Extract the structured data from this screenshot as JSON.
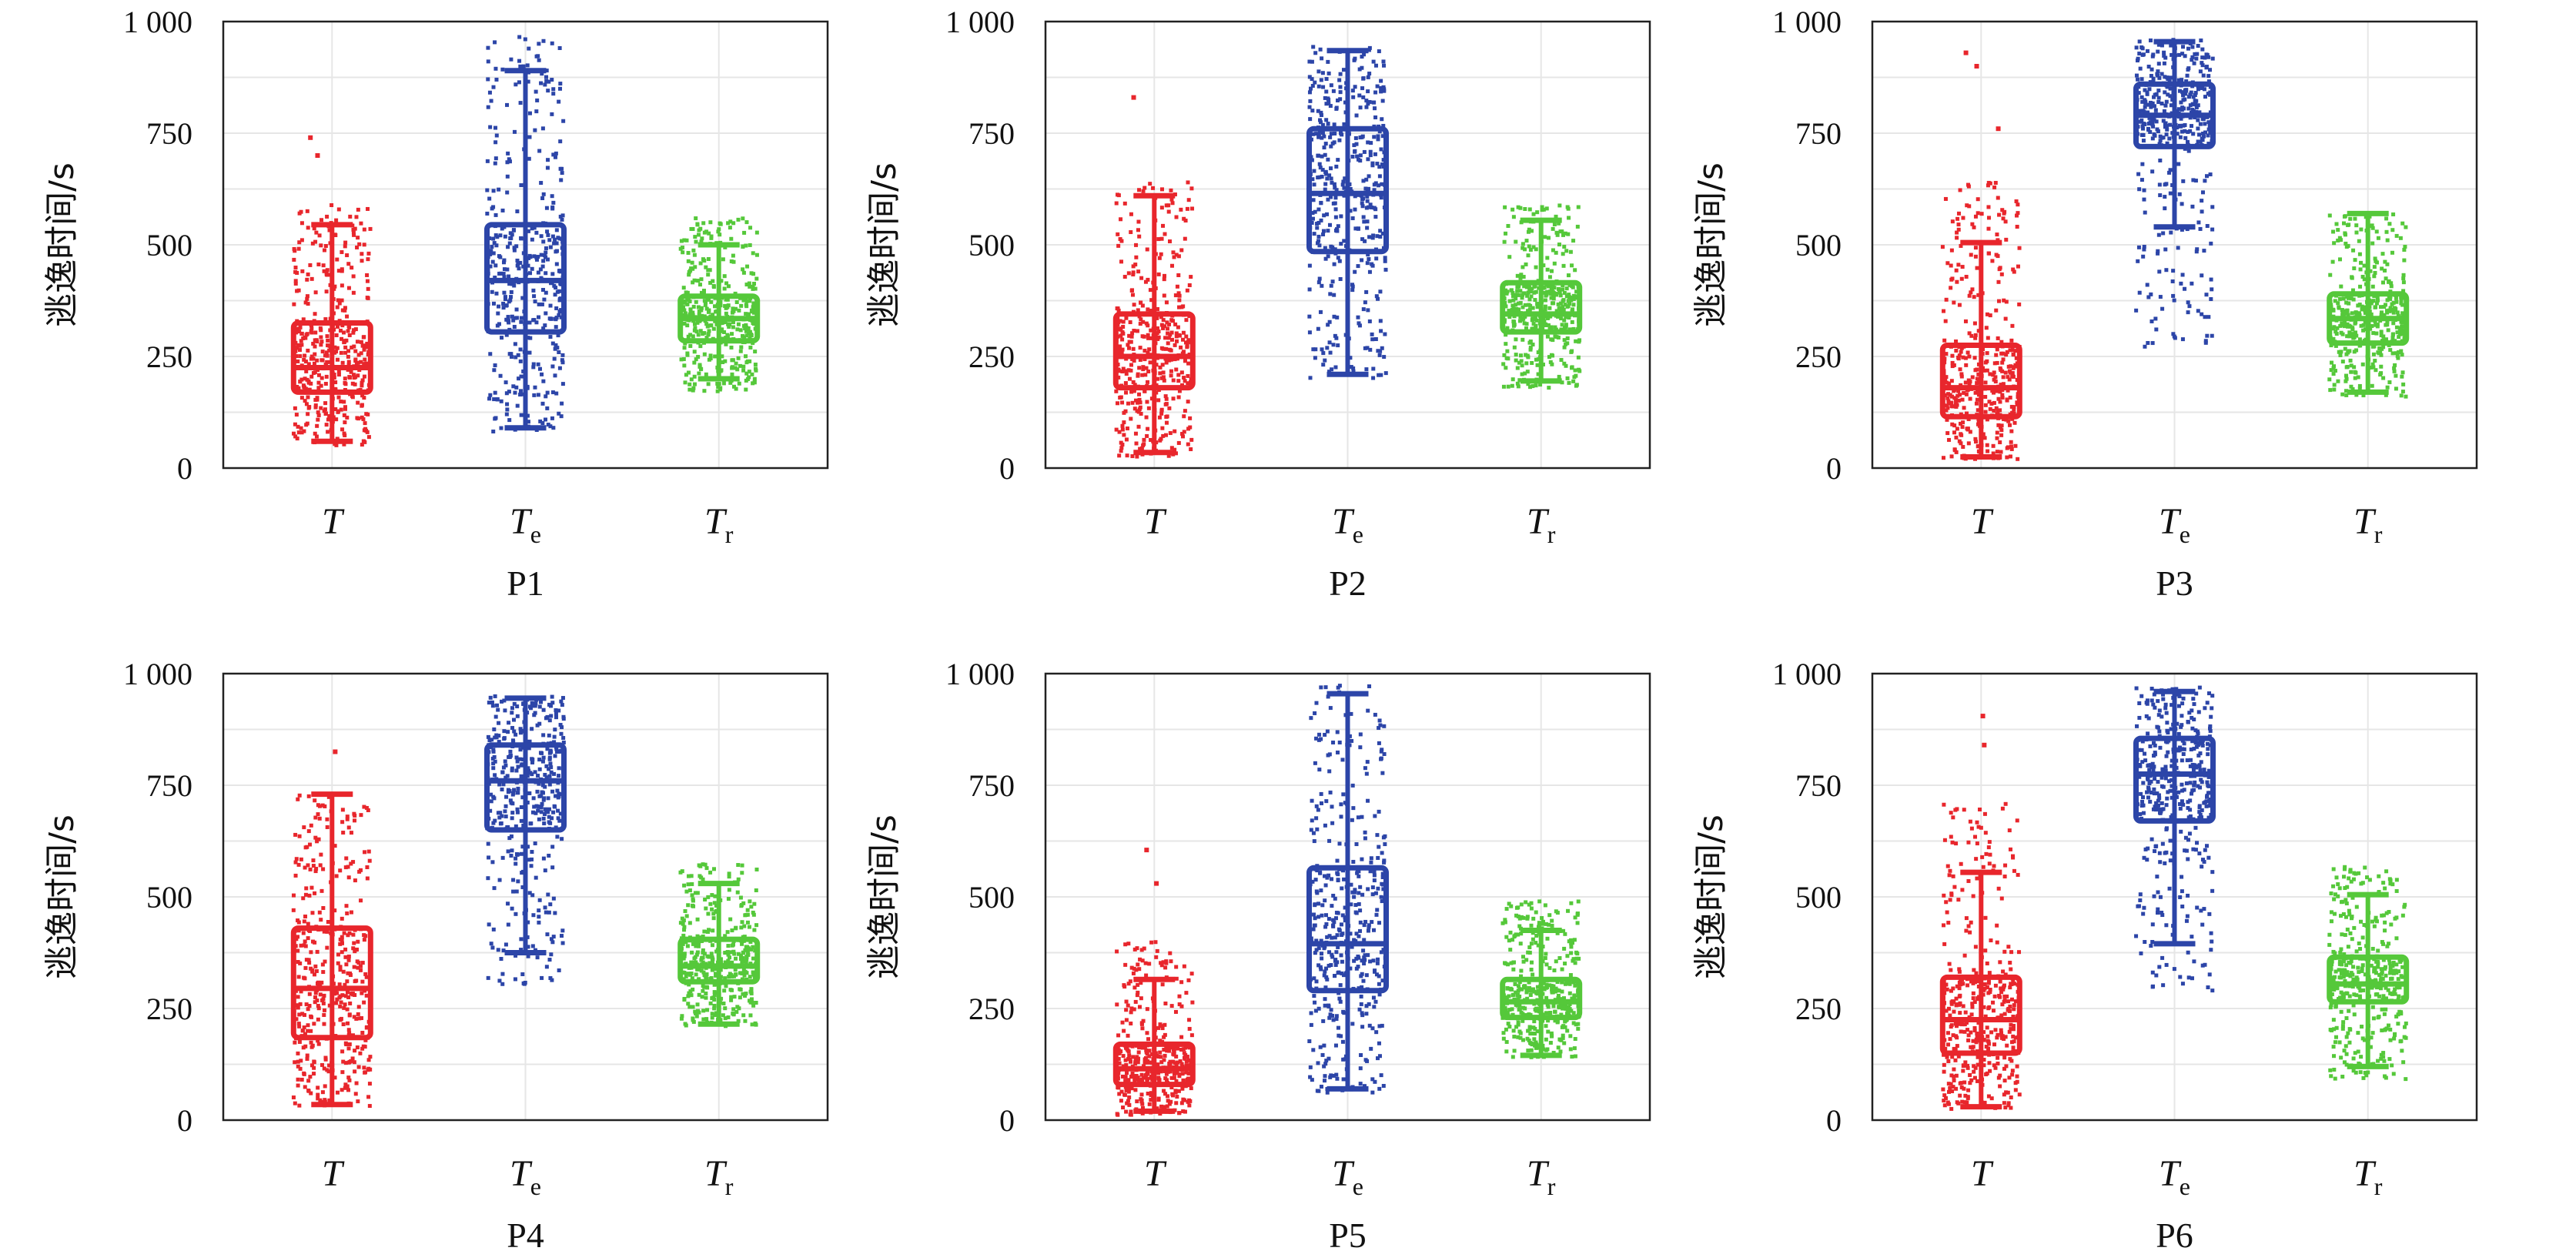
{
  "colors": {
    "T": "#e8262c",
    "Te": "#2c45a8",
    "Tr": "#55c83a",
    "grid": "#e6e6e6",
    "axis": "#222222"
  },
  "chart_data": [
    {
      "type": "box",
      "title": "P1",
      "ylabel": "逃逸时间/s",
      "ylim": [
        0,
        1000
      ],
      "yticks": [
        0,
        250,
        500,
        750,
        1000
      ],
      "ytick_labels": [
        "0",
        "250",
        "500",
        "750",
        "1 000"
      ],
      "categories": [
        {
          "base": "T",
          "sub": "",
          "color": "T",
          "whisker_low": 60,
          "q1": 170,
          "median": 225,
          "q3": 325,
          "whisker_high": 545,
          "pts_low": 50,
          "pts_high": 590,
          "outliers": [
            700,
            740
          ]
        },
        {
          "base": "T",
          "sub": "e",
          "color": "Te",
          "whisker_low": 90,
          "q1": 305,
          "median": 420,
          "q3": 545,
          "whisker_high": 890,
          "pts_low": 80,
          "pts_high": 970,
          "outliers": []
        },
        {
          "base": "T",
          "sub": "r",
          "color": "Tr",
          "whisker_low": 200,
          "q1": 285,
          "median": 335,
          "q3": 385,
          "whisker_high": 500,
          "pts_low": 170,
          "pts_high": 560,
          "outliers": []
        }
      ]
    },
    {
      "type": "box",
      "title": "P2",
      "ylabel": "逃逸时间/s",
      "ylim": [
        0,
        1000
      ],
      "yticks": [
        0,
        250,
        500,
        750,
        1000
      ],
      "ytick_labels": [
        "0",
        "250",
        "500",
        "750",
        "1 000"
      ],
      "categories": [
        {
          "base": "T",
          "sub": "",
          "color": "T",
          "whisker_low": 35,
          "q1": 180,
          "median": 250,
          "q3": 345,
          "whisker_high": 610,
          "pts_low": 25,
          "pts_high": 640,
          "outliers": [
            830
          ]
        },
        {
          "base": "T",
          "sub": "e",
          "color": "Te",
          "whisker_low": 210,
          "q1": 485,
          "median": 615,
          "q3": 760,
          "whisker_high": 935,
          "pts_low": 200,
          "pts_high": 945,
          "outliers": []
        },
        {
          "base": "T",
          "sub": "r",
          "color": "Tr",
          "whisker_low": 195,
          "q1": 305,
          "median": 345,
          "q3": 415,
          "whisker_high": 555,
          "pts_low": 180,
          "pts_high": 590,
          "outliers": []
        }
      ]
    },
    {
      "type": "box",
      "title": "P3",
      "ylabel": "逃逸时间/s",
      "ylim": [
        0,
        1000
      ],
      "yticks": [
        0,
        250,
        500,
        750,
        1000
      ],
      "ytick_labels": [
        "0",
        "250",
        "500",
        "750",
        "1 000"
      ],
      "categories": [
        {
          "base": "T",
          "sub": "",
          "color": "T",
          "whisker_low": 25,
          "q1": 115,
          "median": 180,
          "q3": 275,
          "whisker_high": 505,
          "pts_low": 20,
          "pts_high": 640,
          "outliers": [
            760,
            900,
            930
          ]
        },
        {
          "base": "T",
          "sub": "e",
          "color": "Te",
          "whisker_low": 540,
          "q1": 720,
          "median": 790,
          "q3": 860,
          "whisker_high": 955,
          "pts_low": 270,
          "pts_high": 960,
          "outliers": []
        },
        {
          "base": "T",
          "sub": "r",
          "color": "Tr",
          "whisker_low": 170,
          "q1": 280,
          "median": 335,
          "q3": 390,
          "whisker_high": 570,
          "pts_low": 160,
          "pts_high": 570,
          "outliers": []
        }
      ]
    },
    {
      "type": "box",
      "title": "P4",
      "ylabel": "逃逸时间/s",
      "ylim": [
        0,
        1000
      ],
      "yticks": [
        0,
        250,
        500,
        750,
        1000
      ],
      "ytick_labels": [
        "0",
        "250",
        "500",
        "750",
        "1 000"
      ],
      "categories": [
        {
          "base": "T",
          "sub": "",
          "color": "T",
          "whisker_low": 35,
          "q1": 185,
          "median": 295,
          "q3": 430,
          "whisker_high": 730,
          "pts_low": 30,
          "pts_high": 730,
          "outliers": [
            825
          ]
        },
        {
          "base": "T",
          "sub": "e",
          "color": "Te",
          "whisker_low": 375,
          "q1": 650,
          "median": 760,
          "q3": 840,
          "whisker_high": 945,
          "pts_low": 300,
          "pts_high": 950,
          "outliers": []
        },
        {
          "base": "T",
          "sub": "r",
          "color": "Tr",
          "whisker_low": 215,
          "q1": 310,
          "median": 345,
          "q3": 405,
          "whisker_high": 530,
          "pts_low": 210,
          "pts_high": 575,
          "outliers": []
        }
      ]
    },
    {
      "type": "box",
      "title": "P5",
      "ylabel": "逃逸时间/s",
      "ylim": [
        0,
        1000
      ],
      "yticks": [
        0,
        250,
        500,
        750,
        1000
      ],
      "ytick_labels": [
        "0",
        "250",
        "500",
        "750",
        "1 000"
      ],
      "categories": [
        {
          "base": "T",
          "sub": "",
          "color": "T",
          "whisker_low": 20,
          "q1": 80,
          "median": 115,
          "q3": 170,
          "whisker_high": 315,
          "pts_low": 10,
          "pts_high": 400,
          "outliers": [
            530,
            605
          ]
        },
        {
          "base": "T",
          "sub": "e",
          "color": "Te",
          "whisker_low": 70,
          "q1": 290,
          "median": 395,
          "q3": 565,
          "whisker_high": 955,
          "pts_low": 60,
          "pts_high": 975,
          "outliers": []
        },
        {
          "base": "T",
          "sub": "r",
          "color": "Tr",
          "whisker_low": 145,
          "q1": 230,
          "median": 265,
          "q3": 315,
          "whisker_high": 425,
          "pts_low": 140,
          "pts_high": 490,
          "outliers": []
        }
      ]
    },
    {
      "type": "box",
      "title": "P6",
      "ylabel": "逃逸时间/s",
      "ylim": [
        0,
        1000
      ],
      "yticks": [
        0,
        250,
        500,
        750,
        1000
      ],
      "ytick_labels": [
        "0",
        "250",
        "500",
        "750",
        "1 000"
      ],
      "categories": [
        {
          "base": "T",
          "sub": "",
          "color": "T",
          "whisker_low": 30,
          "q1": 150,
          "median": 225,
          "q3": 320,
          "whisker_high": 555,
          "pts_low": 25,
          "pts_high": 710,
          "outliers": [
            840,
            905
          ]
        },
        {
          "base": "T",
          "sub": "e",
          "color": "Te",
          "whisker_low": 395,
          "q1": 670,
          "median": 775,
          "q3": 855,
          "whisker_high": 960,
          "pts_low": 290,
          "pts_high": 970,
          "outliers": []
        },
        {
          "base": "T",
          "sub": "r",
          "color": "Tr",
          "whisker_low": 120,
          "q1": 265,
          "median": 305,
          "q3": 365,
          "whisker_high": 505,
          "pts_low": 90,
          "pts_high": 570,
          "outliers": []
        }
      ]
    }
  ]
}
